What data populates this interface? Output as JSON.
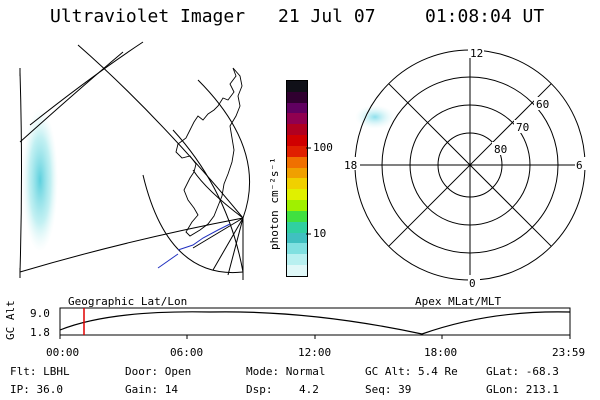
{
  "header": {
    "title": "Ultraviolet Imager",
    "date": "21 Jul 07",
    "time": "01:08:04 UT"
  },
  "colorbar": {
    "unit": "photon cm⁻²s⁻¹",
    "ticks": [
      "100",
      "10"
    ],
    "colors": [
      "#101018",
      "#300030",
      "#600060",
      "#900050",
      "#b00020",
      "#d00000",
      "#e02000",
      "#f07000",
      "#f0a000",
      "#f0d000",
      "#e0f000",
      "#a0f000",
      "#40e040",
      "#30d0a0",
      "#40c0c0",
      "#80e0e0",
      "#b8f0f0",
      "#e0f8f8"
    ]
  },
  "map_left": {
    "label": "Geographic Lat/Lon"
  },
  "map_right": {
    "label": "Apex MLat/MLT",
    "lat_labels": [
      "60",
      "70",
      "80"
    ],
    "mlt_labels": {
      "top": "12",
      "bottom": "0",
      "left": "18",
      "right": "6"
    }
  },
  "timeline": {
    "ylabel": "GC Alt",
    "ytick_high": "9.0",
    "ytick_low": "1.8",
    "xticks": [
      "00:00",
      "06:00",
      "12:00",
      "18:00",
      "23:59"
    ]
  },
  "status": {
    "filter": "Flt: LBHL",
    "ip": "IP: 36.0",
    "door": "Door: Open",
    "gain": "Gain: 14",
    "mode": "Mode: Normal",
    "dsp": "Dsp:    4.2",
    "gc_alt": "GC Alt: 5.4 Re",
    "seq": "Seq: 39",
    "glat": "GLat: -68.3",
    "glon": "GLon: 213.1"
  }
}
